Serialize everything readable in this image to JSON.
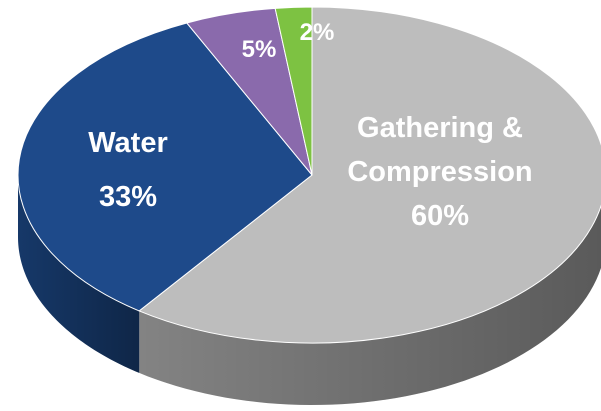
{
  "chart_data": {
    "type": "pie",
    "slices": [
      {
        "name": "Gathering & Compression",
        "value": 60,
        "label_lines": [
          "Gathering &",
          "Compression",
          "60%"
        ],
        "color": "#bdbdbd",
        "side_color": "#8a8a8a",
        "text_color": "#ffffff"
      },
      {
        "name": "Water",
        "value": 33,
        "label_lines": [
          "Water",
          "33%"
        ],
        "color": "#1e4a8a",
        "side_color": "#173b6e",
        "text_color": "#ffffff"
      },
      {
        "name": "",
        "value": 5,
        "label_lines": [
          "5%"
        ],
        "color": "#8a6aac",
        "side_color": "#6d528a",
        "text_color": "#ffffff"
      },
      {
        "name": "",
        "value": 2,
        "label_lines": [
          "2%"
        ],
        "color": "#7dc242",
        "side_color": "#5e9a2e",
        "text_color": "#ffffff"
      }
    ]
  }
}
